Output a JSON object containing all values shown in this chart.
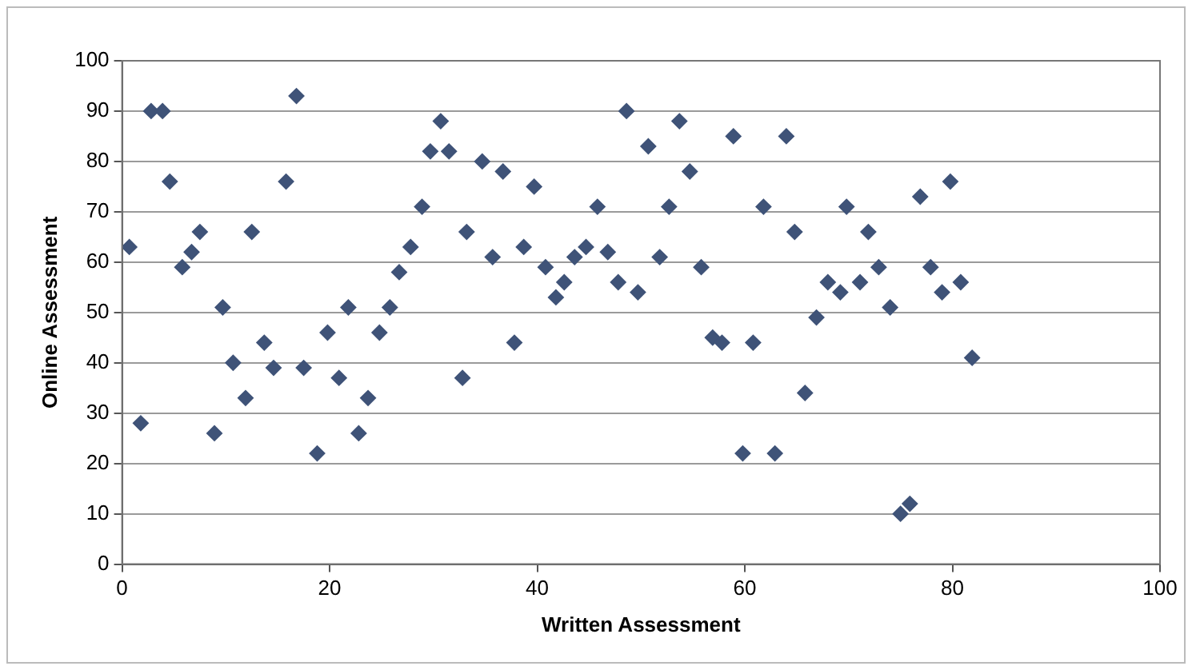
{
  "chart_data": {
    "type": "scatter",
    "xlabel": "Written Assessment",
    "ylabel": "Online Assessment",
    "xlim": [
      0,
      100
    ],
    "xticks": [
      0,
      20,
      40,
      60,
      80,
      100
    ],
    "ylim": [
      0,
      100
    ],
    "yticks": [
      0,
      10,
      20,
      30,
      40,
      50,
      60,
      70,
      80,
      90,
      100
    ],
    "grid": "y",
    "legend": false,
    "marker": "diamond",
    "series": [
      {
        "color": "#3f5378",
        "x": [
          0.7,
          1.8,
          2.8,
          3.9,
          4.6,
          5.8,
          6.7,
          7.5,
          8.9,
          9.7,
          10.7,
          11.9,
          12.5,
          13.7,
          14.6,
          15.8,
          16.8,
          17.5,
          18.8,
          19.8,
          20.9,
          21.8,
          22.8,
          23.7,
          24.8,
          25.8,
          26.7,
          27.8,
          28.9,
          29.7,
          30.7,
          31.5,
          32.8,
          33.2,
          34.7,
          35.7,
          36.7,
          37.8,
          38.7,
          39.7,
          40.8,
          41.8,
          42.6,
          43.6,
          44.7,
          45.8,
          46.8,
          47.8,
          48.6,
          49.7,
          50.7,
          51.8,
          52.7,
          53.7,
          54.7,
          55.8,
          56.9,
          57.8,
          58.9,
          59.8,
          60.8,
          61.8,
          62.9,
          64,
          64.8,
          65.8,
          66.9,
          68,
          69.2,
          69.8,
          71.1,
          71.9,
          72.9,
          74,
          75,
          75.9,
          76.9,
          77.9,
          79,
          79.8,
          80.8,
          81.9
        ],
        "values": [
          63,
          28,
          90,
          90,
          76,
          59,
          62,
          66,
          26,
          51,
          40,
          33,
          66,
          44,
          39,
          76,
          93,
          39,
          22,
          46,
          37,
          51,
          26,
          33,
          46,
          51,
          58,
          63,
          71,
          82,
          88,
          82,
          37,
          66,
          80,
          61,
          78,
          44,
          63,
          75,
          59,
          53,
          56,
          61,
          63,
          71,
          62,
          56,
          90,
          54,
          83,
          61,
          71,
          88,
          78,
          59,
          45,
          44,
          85,
          22,
          44,
          71,
          22,
          85,
          66,
          34,
          49,
          56,
          54,
          71,
          56,
          66,
          59,
          51,
          10,
          12,
          73,
          59,
          54,
          76,
          56,
          41
        ]
      }
    ]
  }
}
